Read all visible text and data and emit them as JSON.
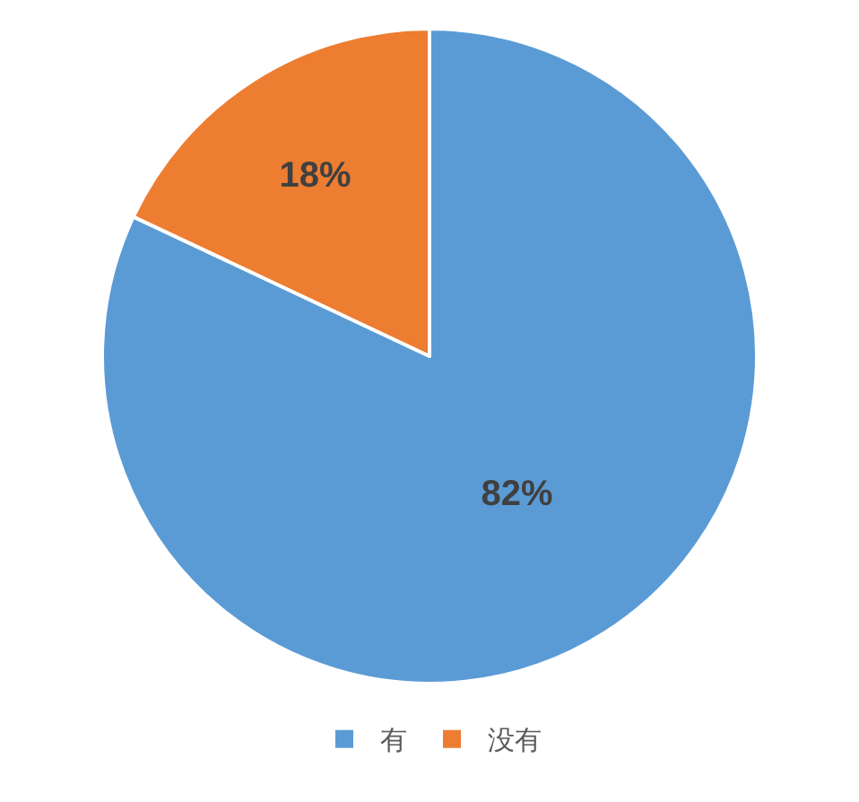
{
  "chart_data": {
    "type": "pie",
    "categories": [
      "有",
      "没有"
    ],
    "values": [
      82,
      18
    ],
    "colors": [
      "#5b9bd5",
      "#ed7d31"
    ],
    "value_labels": [
      "82%",
      "18%"
    ],
    "legend": "bottom"
  }
}
